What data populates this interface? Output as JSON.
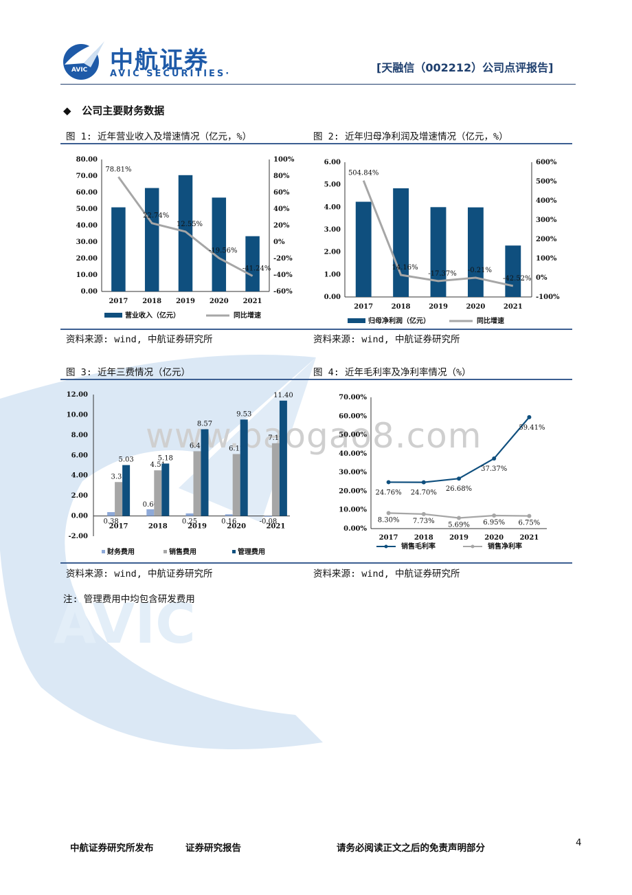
{
  "header": {
    "logo_cn": "中航证券",
    "logo_en": "AVIC SECURITIES·",
    "logo_badge": "AVIC",
    "report_title": "[天融信（002212）公司点评报告]"
  },
  "section_title": "公司主要财务数据",
  "section_bullet": "◆",
  "figures": [
    {
      "title": "图 1: 近年营业收入及增速情况（亿元，%）",
      "source": "资料来源: wind, 中航证券研究所"
    },
    {
      "title": "图 2: 近年归母净利润及增速情况（亿元，%）",
      "source": "资料来源: wind, 中航证券研究所"
    },
    {
      "title": "图 3: 近年三费情况（亿元）",
      "source": "资料来源: wind, 中航证券研究所"
    },
    {
      "title": "图 4: 近年毛利率及净利率情况（%）",
      "source": "资料来源: wind, 中航证券研究所"
    }
  ],
  "note": "注: 管理费用中均包含研发费用",
  "watermark": {
    "url": "www.baogao8.com",
    "logo": "AVIC"
  },
  "footer": {
    "publisher": "中航证券研究所发布",
    "type": "证券研究报告",
    "disclaimer": "请务必阅读正文之后的免责声明部分",
    "page": "4"
  },
  "colors": {
    "navy": "#0f4f7e",
    "gray": "#a6a6a6",
    "light_blue": "#8ea9d8",
    "brand": "#1e5aa8"
  },
  "chart_data": [
    {
      "type": "bar",
      "categories": [
        "2017",
        "2018",
        "2019",
        "2020",
        "2021"
      ],
      "series": [
        {
          "name": "营业收入（亿元）",
          "type": "bar",
          "values": [
            51.0,
            62.7,
            70.5,
            56.9,
            33.5
          ]
        },
        {
          "name": "同比增速",
          "type": "line",
          "axis": "right",
          "values": [
            78.81,
            22.74,
            12.55,
            -19.56,
            -41.24
          ],
          "labels": [
            "78.81%",
            "22.74%",
            "12.55%",
            "-19.56%",
            "-41.24%"
          ]
        }
      ],
      "ylim_left": [
        0,
        80
      ],
      "yticks_left": [
        "0.00",
        "10.00",
        "20.00",
        "30.00",
        "40.00",
        "50.00",
        "60.00",
        "70.00",
        "80.00"
      ],
      "ylim_right": [
        -60,
        100
      ],
      "yticks_right": [
        "-60%",
        "-40%",
        "-20%",
        "0%",
        "20%",
        "40%",
        "60%",
        "80%",
        "100%"
      ],
      "legend": "bottom"
    },
    {
      "type": "bar",
      "categories": [
        "2017",
        "2018",
        "2019",
        "2020",
        "2021"
      ],
      "series": [
        {
          "name": "归母净利润（亿元）",
          "type": "bar",
          "values": [
            4.24,
            4.84,
            4.0,
            3.99,
            2.29
          ]
        },
        {
          "name": "同比增速",
          "type": "line",
          "axis": "right",
          "values": [
            504.84,
            14.16,
            -17.37,
            -0.21,
            -42.52
          ],
          "labels": [
            "504.84%",
            "14.16%",
            "-17.37%",
            "-0.21%",
            "-42.52%"
          ]
        }
      ],
      "ylim_left": [
        0,
        6
      ],
      "yticks_left": [
        "0.00",
        "1.00",
        "2.00",
        "3.00",
        "4.00",
        "5.00",
        "6.00"
      ],
      "ylim_right": [
        -100,
        600
      ],
      "yticks_right": [
        "-100%",
        "0%",
        "100%",
        "200%",
        "300%",
        "400%",
        "500%",
        "600%"
      ],
      "legend": "bottom"
    },
    {
      "type": "bar",
      "categories": [
        "2017",
        "2018",
        "2019",
        "2020",
        "2021"
      ],
      "series": [
        {
          "name": "财务费用",
          "values": [
            0.38,
            0.66,
            0.25,
            0.16,
            -0.08
          ],
          "labels": [
            "0.38",
            "0.66",
            "0.25",
            "0.16",
            "-0.08"
          ]
        },
        {
          "name": "销售费用",
          "values": [
            3.35,
            4.51,
            6.4,
            6.12,
            7.19
          ],
          "labels": [
            "3.35",
            "4.51",
            "6.40",
            "6.12",
            "7.19"
          ]
        },
        {
          "name": "管理费用",
          "values": [
            5.03,
            5.18,
            8.57,
            9.53,
            11.4
          ],
          "labels": [
            "5.03",
            "5.18",
            "8.57",
            "9.53",
            "11.40"
          ]
        }
      ],
      "ylim": [
        -2,
        12
      ],
      "yticks": [
        "-2.00",
        "0.00",
        "2.00",
        "4.00",
        "6.00",
        "8.00",
        "10.00",
        "12.00"
      ],
      "legend": "bottom"
    },
    {
      "type": "line",
      "categories": [
        "2017",
        "2018",
        "2019",
        "2020",
        "2021"
      ],
      "series": [
        {
          "name": "销售毛利率",
          "values": [
            24.76,
            24.7,
            26.68,
            37.37,
            59.41
          ],
          "labels": [
            "24.76%",
            "24.70%",
            "26.68%",
            "37.37%",
            "59.41%"
          ]
        },
        {
          "name": "销售净利率",
          "values": [
            8.3,
            7.73,
            5.69,
            6.95,
            6.75
          ],
          "labels": [
            "8.30%",
            "7.73%",
            "5.69%",
            "6.95%",
            "6.75%"
          ]
        }
      ],
      "ylim": [
        0,
        70
      ],
      "yticks": [
        "0.00%",
        "10.00%",
        "20.00%",
        "30.00%",
        "40.00%",
        "50.00%",
        "60.00%",
        "70.00%"
      ],
      "legend": "bottom"
    }
  ]
}
